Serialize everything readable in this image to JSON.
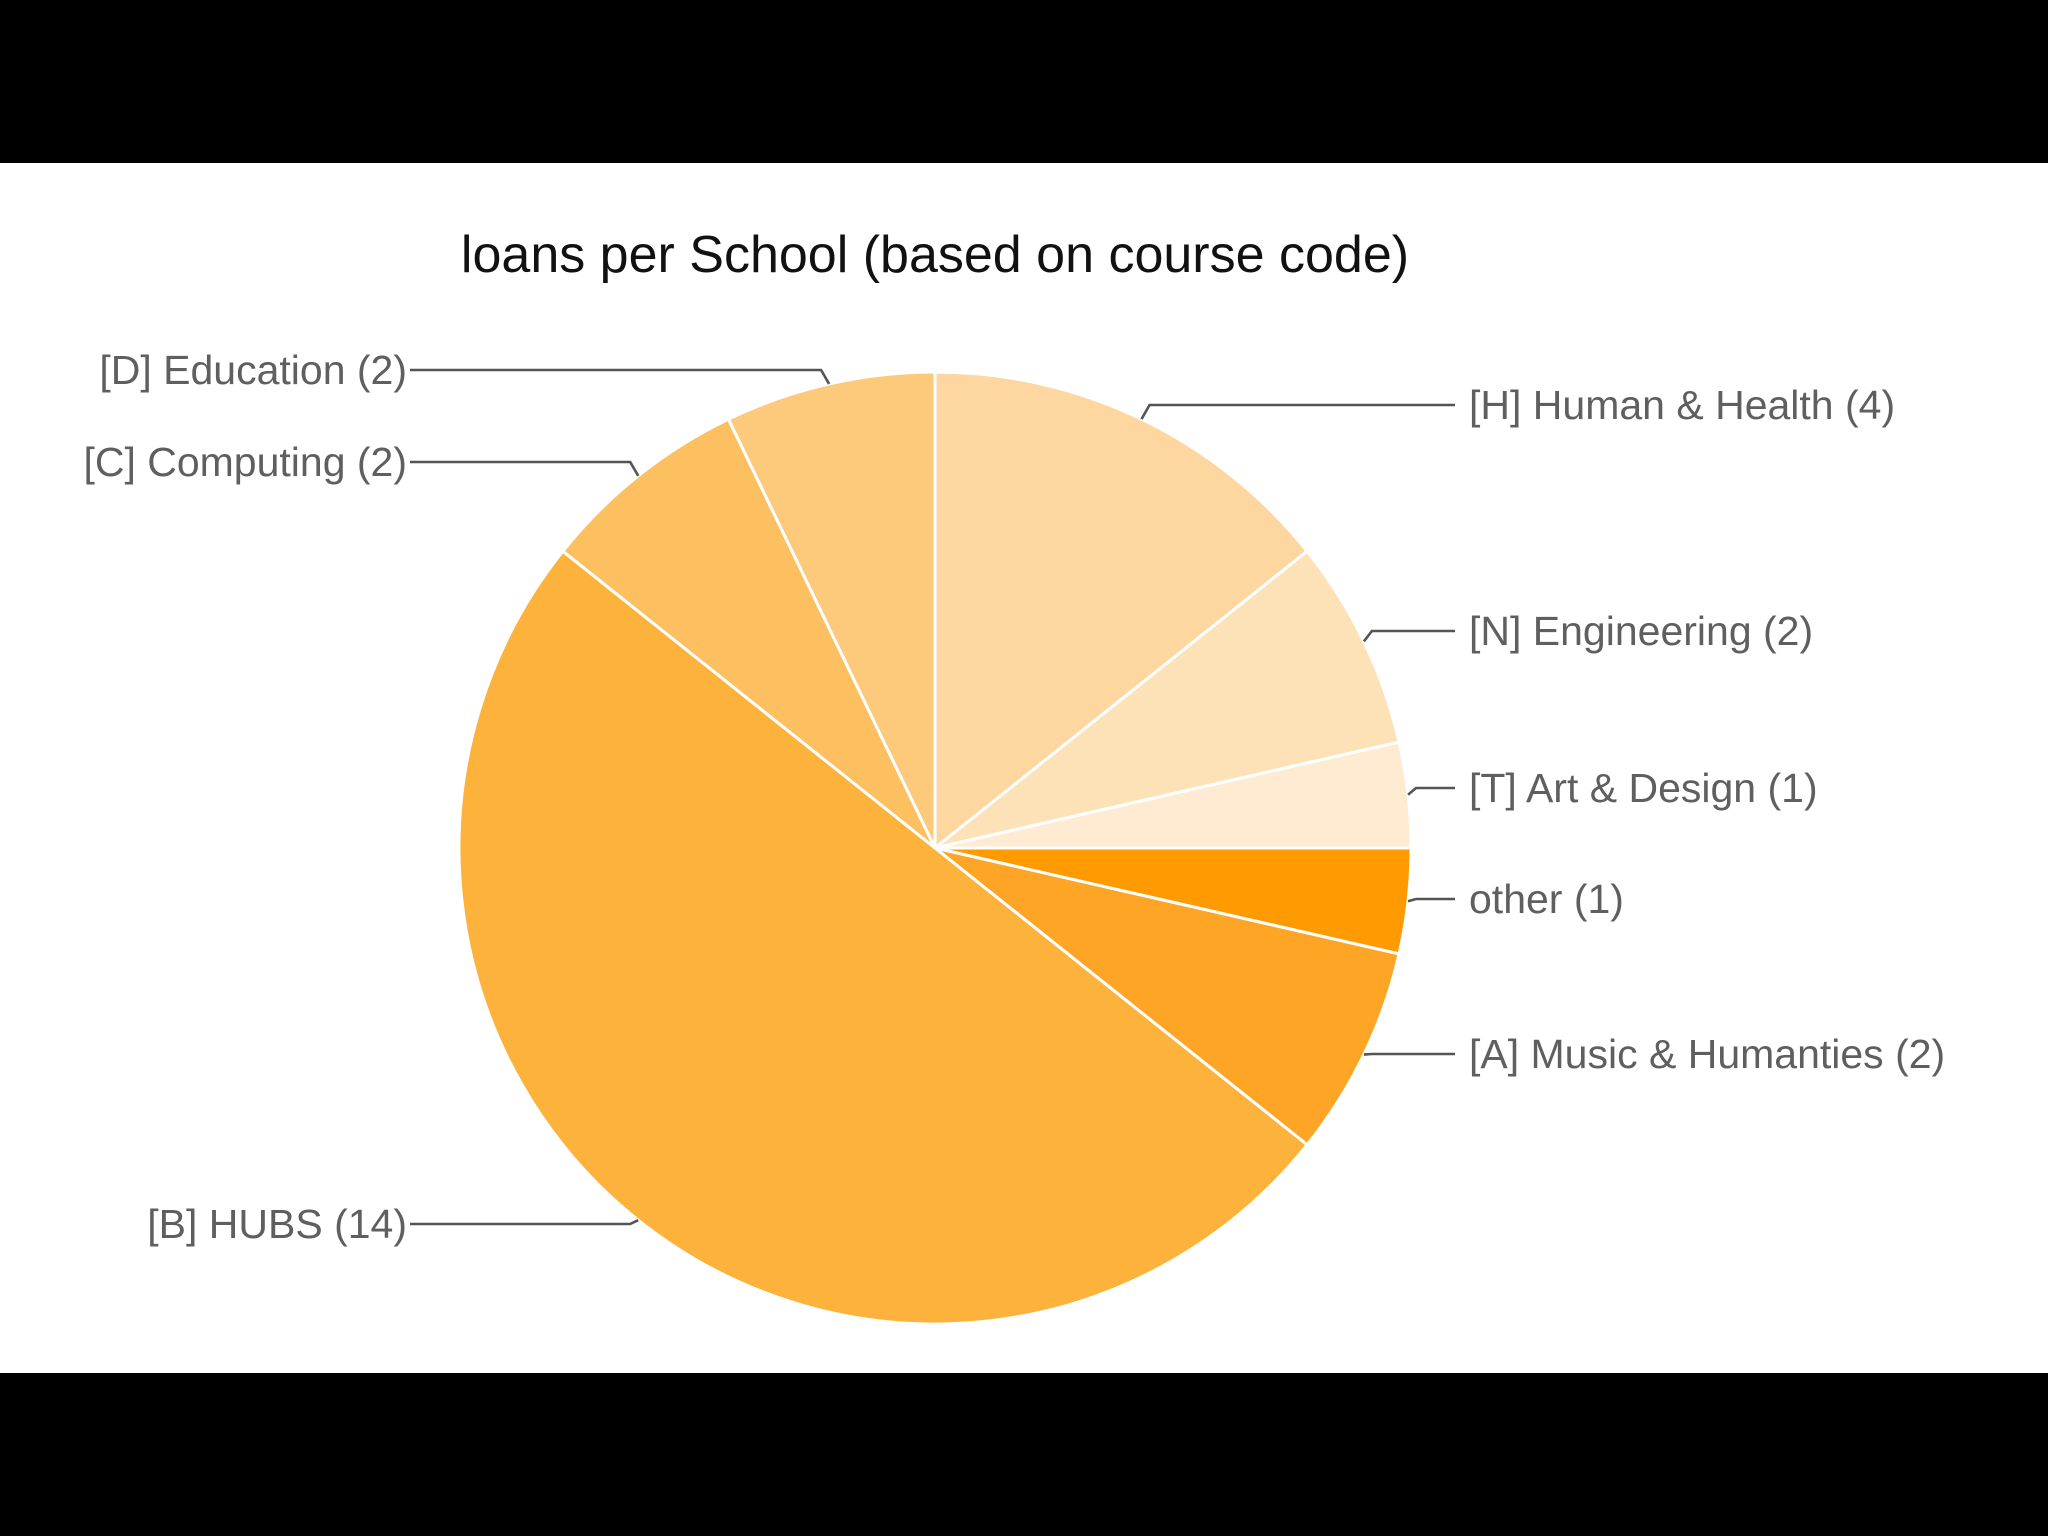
{
  "chart_data": {
    "type": "pie",
    "title": "loans per School (based on course code)",
    "slices": [
      {
        "label": "[H] Human & Health (4)",
        "value": 4,
        "color": "#fdd6a0"
      },
      {
        "label": "[N] Engineering (2)",
        "value": 2,
        "color": "#fde2b8"
      },
      {
        "label": "[T] Art & Design (1)",
        "value": 1,
        "color": "#feebd2"
      },
      {
        "label": "other (1)",
        "value": 1,
        "color": "#ff9a00"
      },
      {
        "label": "[A] Music & Humanties (2)",
        "value": 2,
        "color": "#fea525"
      },
      {
        "label": "[B] HUBS (14)",
        "value": 14,
        "color": "#fdb23c"
      },
      {
        "label": "[C] Computing (2)",
        "value": 2,
        "color": "#fdc061"
      },
      {
        "label": "[D] Education (2)",
        "value": 2,
        "color": "#fdc97b"
      }
    ],
    "start_angle": "12 o'clock",
    "direction": "clockwise",
    "legend": "none (labels on leader lines)"
  },
  "colors": {
    "letterbox": "#000000",
    "chart_background": "#ffffff",
    "title": "#111111",
    "label": "#5f5f5f",
    "leader": "#555555"
  }
}
